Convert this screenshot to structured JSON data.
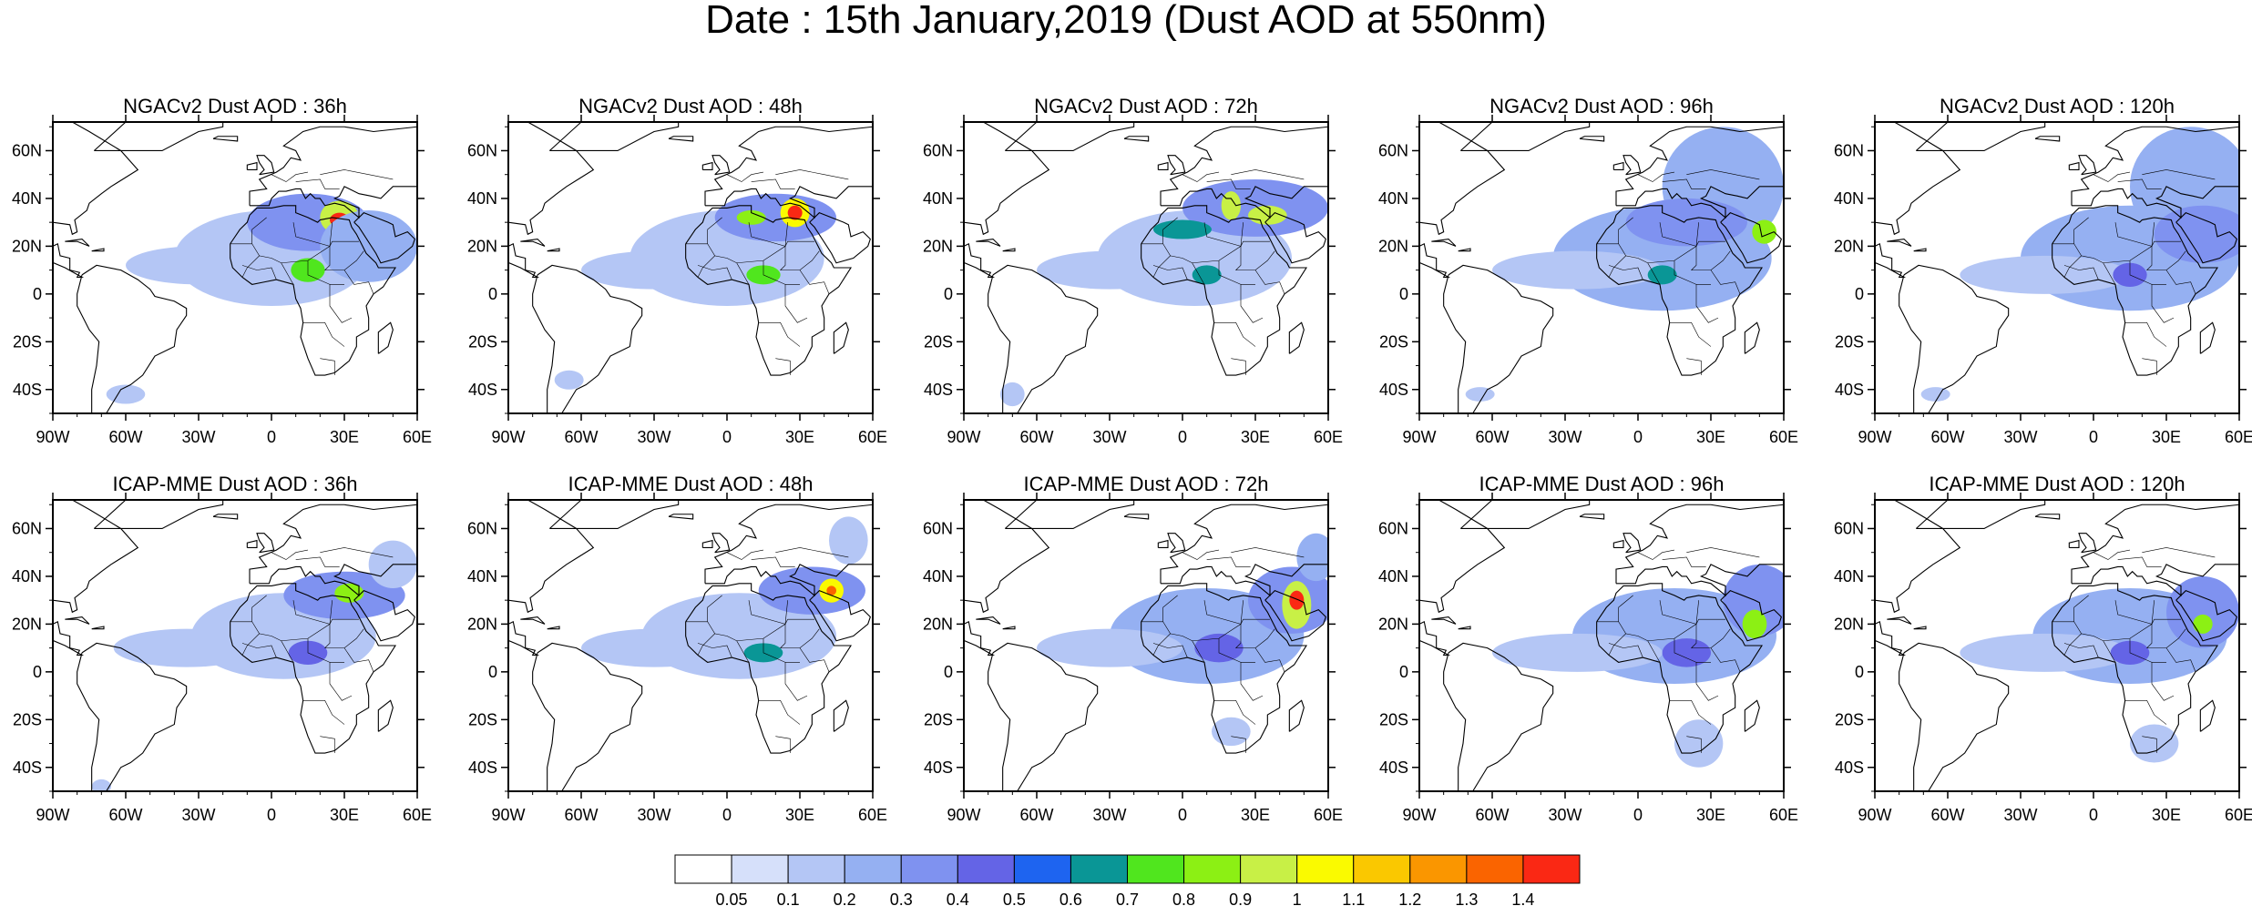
{
  "title": "Date : 15th January,2019 (Dust AOD at 550nm)",
  "chart_data": {
    "type": "heatmap",
    "title": "Date : 15th January,2019 (Dust AOD at 550nm)",
    "xlabel": "",
    "ylabel": "",
    "xlim": [
      -90,
      60
    ],
    "ylim": [
      -50,
      72
    ],
    "grid": false,
    "lon_ticks": [
      {
        "value": -90,
        "label": "90W"
      },
      {
        "value": -60,
        "label": "60W"
      },
      {
        "value": -30,
        "label": "30W"
      },
      {
        "value": 0,
        "label": "0"
      },
      {
        "value": 30,
        "label": "30E"
      },
      {
        "value": 60,
        "label": "60E"
      }
    ],
    "lat_ticks": [
      {
        "value": 60,
        "label": "60N"
      },
      {
        "value": 40,
        "label": "40N"
      },
      {
        "value": 20,
        "label": "20N"
      },
      {
        "value": 0,
        "label": "0"
      },
      {
        "value": -20,
        "label": "20S"
      },
      {
        "value": -40,
        "label": "40S"
      }
    ],
    "colorbar": {
      "colors": [
        "#ffffff",
        "#d6e0fa",
        "#b4c6f5",
        "#95b0f2",
        "#7f92f0",
        "#6464e6",
        "#1e64f0",
        "#0a9696",
        "#50e61e",
        "#8cf014",
        "#c8f046",
        "#fafa00",
        "#fac800",
        "#fa9600",
        "#fa6400",
        "#fa2814"
      ],
      "labels": [
        "0.05",
        "0.1",
        "0.2",
        "0.3",
        "0.4",
        "0.5",
        "0.6",
        "0.7",
        "0.8",
        "0.9",
        "1",
        "1.1",
        "1.2",
        "1.3",
        "1.4"
      ]
    },
    "panels": [
      {
        "title": "NGACv2 Dust AOD : 36h",
        "row": 0,
        "col": 0,
        "blobs": [
          {
            "lon": 0,
            "lat": 15,
            "w": 40,
            "h": 20,
            "v": 0.18
          },
          {
            "lon": -30,
            "lat": 12,
            "w": 30,
            "h": 8,
            "v": 0.12
          },
          {
            "lon": 15,
            "lat": 30,
            "w": 25,
            "h": 12,
            "v": 0.3
          },
          {
            "lon": 28,
            "lat": 32,
            "w": 8,
            "h": 7,
            "v": 0.95
          },
          {
            "lon": 28,
            "lat": 31,
            "w": 4,
            "h": 3,
            "v": 1.4
          },
          {
            "lon": 15,
            "lat": 10,
            "w": 7,
            "h": 5,
            "v": 0.7
          },
          {
            "lon": 40,
            "lat": 20,
            "w": 20,
            "h": 15,
            "v": 0.2
          },
          {
            "lon": -60,
            "lat": -42,
            "w": 8,
            "h": 4,
            "v": 0.15
          }
        ]
      },
      {
        "title": "NGACv2 Dust AOD : 48h",
        "row": 0,
        "col": 1,
        "blobs": [
          {
            "lon": 0,
            "lat": 15,
            "w": 40,
            "h": 20,
            "v": 0.18
          },
          {
            "lon": -30,
            "lat": 10,
            "w": 30,
            "h": 8,
            "v": 0.12
          },
          {
            "lon": 20,
            "lat": 32,
            "w": 25,
            "h": 10,
            "v": 0.3
          },
          {
            "lon": 28,
            "lat": 34,
            "w": 6,
            "h": 6,
            "v": 1.0
          },
          {
            "lon": 28,
            "lat": 34,
            "w": 3,
            "h": 3,
            "v": 1.4
          },
          {
            "lon": 10,
            "lat": 32,
            "w": 6,
            "h": 3,
            "v": 0.8
          },
          {
            "lon": 15,
            "lat": 8,
            "w": 7,
            "h": 4,
            "v": 0.7
          },
          {
            "lon": -65,
            "lat": -36,
            "w": 6,
            "h": 4,
            "v": 0.12
          }
        ]
      },
      {
        "title": "NGACv2 Dust AOD : 72h",
        "row": 0,
        "col": 2,
        "blobs": [
          {
            "lon": 5,
            "lat": 15,
            "w": 40,
            "h": 20,
            "v": 0.18
          },
          {
            "lon": -30,
            "lat": 10,
            "w": 30,
            "h": 8,
            "v": 0.12
          },
          {
            "lon": 30,
            "lat": 36,
            "w": 30,
            "h": 12,
            "v": 0.35
          },
          {
            "lon": 20,
            "lat": 37,
            "w": 4,
            "h": 6,
            "v": 0.9
          },
          {
            "lon": 35,
            "lat": 33,
            "w": 8,
            "h": 4,
            "v": 0.9
          },
          {
            "lon": 0,
            "lat": 27,
            "w": 12,
            "h": 4,
            "v": 0.6
          },
          {
            "lon": 10,
            "lat": 8,
            "w": 6,
            "h": 4,
            "v": 0.6
          },
          {
            "lon": -70,
            "lat": -42,
            "w": 5,
            "h": 5,
            "v": 0.12
          }
        ]
      },
      {
        "title": "NGACv2 Dust AOD : 96h",
        "row": 0,
        "col": 3,
        "blobs": [
          {
            "lon": 10,
            "lat": 15,
            "w": 45,
            "h": 22,
            "v": 0.2
          },
          {
            "lon": -25,
            "lat": 10,
            "w": 35,
            "h": 8,
            "v": 0.12
          },
          {
            "lon": 35,
            "lat": 45,
            "w": 25,
            "h": 25,
            "v": 0.25
          },
          {
            "lon": 20,
            "lat": 30,
            "w": 25,
            "h": 10,
            "v": 0.3
          },
          {
            "lon": 52,
            "lat": 26,
            "w": 5,
            "h": 5,
            "v": 0.8
          },
          {
            "lon": 10,
            "lat": 8,
            "w": 6,
            "h": 4,
            "v": 0.6
          },
          {
            "lon": -65,
            "lat": -42,
            "w": 6,
            "h": 3,
            "v": 0.12
          }
        ]
      },
      {
        "title": "NGACv2 Dust AOD : 120h",
        "row": 0,
        "col": 4,
        "blobs": [
          {
            "lon": 15,
            "lat": 15,
            "w": 45,
            "h": 22,
            "v": 0.2
          },
          {
            "lon": -20,
            "lat": 8,
            "w": 35,
            "h": 8,
            "v": 0.12
          },
          {
            "lon": 40,
            "lat": 45,
            "w": 25,
            "h": 25,
            "v": 0.25
          },
          {
            "lon": 45,
            "lat": 25,
            "w": 20,
            "h": 12,
            "v": 0.3
          },
          {
            "lon": 15,
            "lat": 8,
            "w": 7,
            "h": 5,
            "v": 0.45
          },
          {
            "lon": -65,
            "lat": -42,
            "w": 6,
            "h": 3,
            "v": 0.12
          }
        ]
      },
      {
        "title": "ICAP-MME Dust AOD : 36h",
        "row": 1,
        "col": 0,
        "blobs": [
          {
            "lon": 5,
            "lat": 15,
            "w": 38,
            "h": 18,
            "v": 0.18
          },
          {
            "lon": -35,
            "lat": 10,
            "w": 30,
            "h": 8,
            "v": 0.12
          },
          {
            "lon": 30,
            "lat": 32,
            "w": 25,
            "h": 10,
            "v": 0.3
          },
          {
            "lon": 32,
            "lat": 33,
            "w": 6,
            "h": 4,
            "v": 0.8
          },
          {
            "lon": 15,
            "lat": 8,
            "w": 8,
            "h": 5,
            "v": 0.4
          },
          {
            "lon": 50,
            "lat": 45,
            "w": 10,
            "h": 10,
            "v": 0.15
          },
          {
            "lon": -70,
            "lat": -48,
            "w": 4,
            "h": 3,
            "v": 0.12
          }
        ]
      },
      {
        "title": "ICAP-MME Dust AOD : 48h",
        "row": 1,
        "col": 1,
        "blobs": [
          {
            "lon": 5,
            "lat": 15,
            "w": 40,
            "h": 18,
            "v": 0.18
          },
          {
            "lon": -30,
            "lat": 10,
            "w": 30,
            "h": 8,
            "v": 0.12
          },
          {
            "lon": 35,
            "lat": 34,
            "w": 22,
            "h": 10,
            "v": 0.3
          },
          {
            "lon": 43,
            "lat": 34,
            "w": 5,
            "h": 5,
            "v": 1.0
          },
          {
            "lon": 43,
            "lat": 34,
            "w": 2,
            "h": 2,
            "v": 1.3
          },
          {
            "lon": 15,
            "lat": 8,
            "w": 8,
            "h": 4,
            "v": 0.6
          },
          {
            "lon": 50,
            "lat": 55,
            "w": 8,
            "h": 10,
            "v": 0.15
          }
        ]
      },
      {
        "title": "ICAP-MME Dust AOD : 72h",
        "row": 1,
        "col": 2,
        "blobs": [
          {
            "lon": 10,
            "lat": 15,
            "w": 40,
            "h": 20,
            "v": 0.2
          },
          {
            "lon": -30,
            "lat": 10,
            "w": 30,
            "h": 8,
            "v": 0.12
          },
          {
            "lon": 45,
            "lat": 30,
            "w": 18,
            "h": 14,
            "v": 0.35
          },
          {
            "lon": 47,
            "lat": 28,
            "w": 6,
            "h": 10,
            "v": 0.9
          },
          {
            "lon": 47,
            "lat": 30,
            "w": 3,
            "h": 4,
            "v": 1.4
          },
          {
            "lon": 15,
            "lat": 10,
            "w": 10,
            "h": 6,
            "v": 0.4
          },
          {
            "lon": 55,
            "lat": 48,
            "w": 8,
            "h": 10,
            "v": 0.2
          },
          {
            "lon": 20,
            "lat": -25,
            "w": 8,
            "h": 6,
            "v": 0.12
          }
        ]
      },
      {
        "title": "ICAP-MME Dust AOD : 96h",
        "row": 1,
        "col": 3,
        "blobs": [
          {
            "lon": 15,
            "lat": 15,
            "w": 42,
            "h": 20,
            "v": 0.2
          },
          {
            "lon": -25,
            "lat": 8,
            "w": 35,
            "h": 8,
            "v": 0.12
          },
          {
            "lon": 50,
            "lat": 30,
            "w": 15,
            "h": 15,
            "v": 0.35
          },
          {
            "lon": 48,
            "lat": 20,
            "w": 5,
            "h": 6,
            "v": 0.8
          },
          {
            "lon": 20,
            "lat": 8,
            "w": 10,
            "h": 6,
            "v": 0.4
          },
          {
            "lon": 25,
            "lat": -30,
            "w": 10,
            "h": 10,
            "v": 0.12
          }
        ]
      },
      {
        "title": "ICAP-MME Dust AOD : 120h",
        "row": 1,
        "col": 4,
        "blobs": [
          {
            "lon": 15,
            "lat": 15,
            "w": 40,
            "h": 20,
            "v": 0.2
          },
          {
            "lon": -20,
            "lat": 8,
            "w": 35,
            "h": 8,
            "v": 0.12
          },
          {
            "lon": 45,
            "lat": 25,
            "w": 15,
            "h": 15,
            "v": 0.3
          },
          {
            "lon": 45,
            "lat": 20,
            "w": 4,
            "h": 4,
            "v": 0.8
          },
          {
            "lon": 15,
            "lat": 8,
            "w": 8,
            "h": 5,
            "v": 0.4
          },
          {
            "lon": 25,
            "lat": -30,
            "w": 10,
            "h": 8,
            "v": 0.12
          }
        ]
      }
    ]
  }
}
